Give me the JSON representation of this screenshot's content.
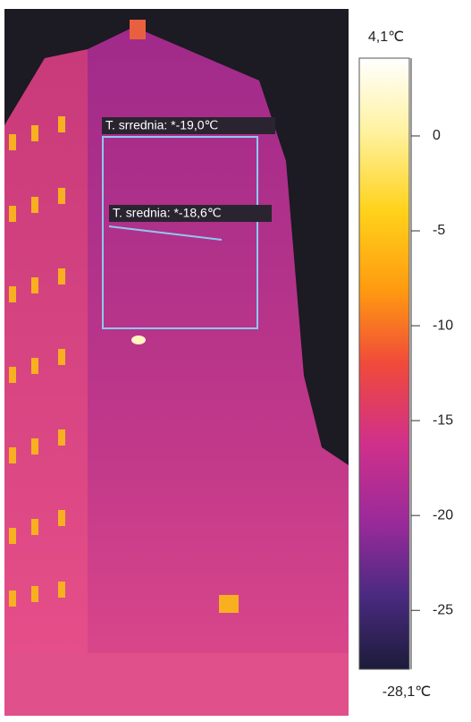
{
  "image": {
    "annotations": [
      {
        "label": "T. srrednia: *-19,0℃"
      },
      {
        "label": "T. srednia: *-18,6℃"
      }
    ]
  },
  "scale": {
    "range": [
      {
        "value": -28.1,
        "label": "-28,1℃"
      },
      {
        "value": 4.1,
        "label": "4,1℃"
      }
    ],
    "ticks": [
      0,
      -5,
      -10,
      -15,
      -20,
      -25
    ]
  }
}
